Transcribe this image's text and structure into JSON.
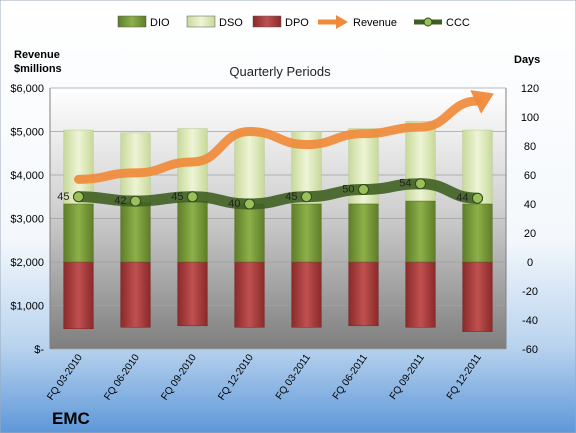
{
  "chart_data": {
    "type": "bar",
    "title": "Quarterly Periods",
    "company": "EMC",
    "left_axis_title": "Revenue\n$millions",
    "right_axis_title": "Days",
    "left_ylim": [
      0,
      6000
    ],
    "left_ticks": [
      0,
      1000,
      2000,
      3000,
      4000,
      5000,
      6000
    ],
    "left_tick_labels": [
      "$-",
      "$1,000",
      "$2,000",
      "$3,000",
      "$4,000",
      "$5,000",
      "$6,000"
    ],
    "right_ylim": [
      -60,
      120
    ],
    "right_ticks": [
      -60,
      -40,
      -20,
      0,
      20,
      40,
      60,
      80,
      100,
      120
    ],
    "right_tick_labels": [
      "-60",
      "-40",
      "-20",
      "0",
      "20",
      "40",
      "60",
      "80",
      "100",
      "120"
    ],
    "categories": [
      "FQ 03-2010",
      "FQ 06-2010",
      "FQ 09-2010",
      "FQ 12-2010",
      "FQ 03-2011",
      "FQ 06-2011",
      "FQ 09-2011",
      "FQ 12-2011"
    ],
    "legend_position": "top",
    "grid": true,
    "series": [
      {
        "name": "DIO",
        "kind": "stacked-bar",
        "axis": "right",
        "color": "#7a9a3a",
        "values": [
          40,
          41,
          42,
          40,
          40,
          40,
          42,
          40
        ]
      },
      {
        "name": "DSO",
        "kind": "stacked-bar",
        "axis": "right",
        "color": "#dfe9b8",
        "values": [
          51,
          48,
          50,
          50,
          50,
          52,
          55,
          51
        ]
      },
      {
        "name": "DPO",
        "kind": "bar-negative",
        "axis": "right",
        "color": "#a83a3a",
        "values": [
          -46,
          -45,
          -44,
          -45,
          -45,
          -44,
          -45,
          -48
        ]
      },
      {
        "name": "Revenue",
        "kind": "line-arrow",
        "axis": "left",
        "color": "#f08a3a",
        "values": [
          3900,
          4050,
          4300,
          5000,
          4700,
          4950,
          5100,
          5700
        ]
      },
      {
        "name": "CCC",
        "kind": "line-markers",
        "axis": "right",
        "color": "#4a6a2a",
        "values": [
          45,
          42,
          45,
          40,
          45,
          50,
          54,
          44
        ],
        "labels": [
          "45",
          "42",
          "45",
          "40",
          "45",
          "50",
          "54",
          "44"
        ]
      }
    ]
  }
}
